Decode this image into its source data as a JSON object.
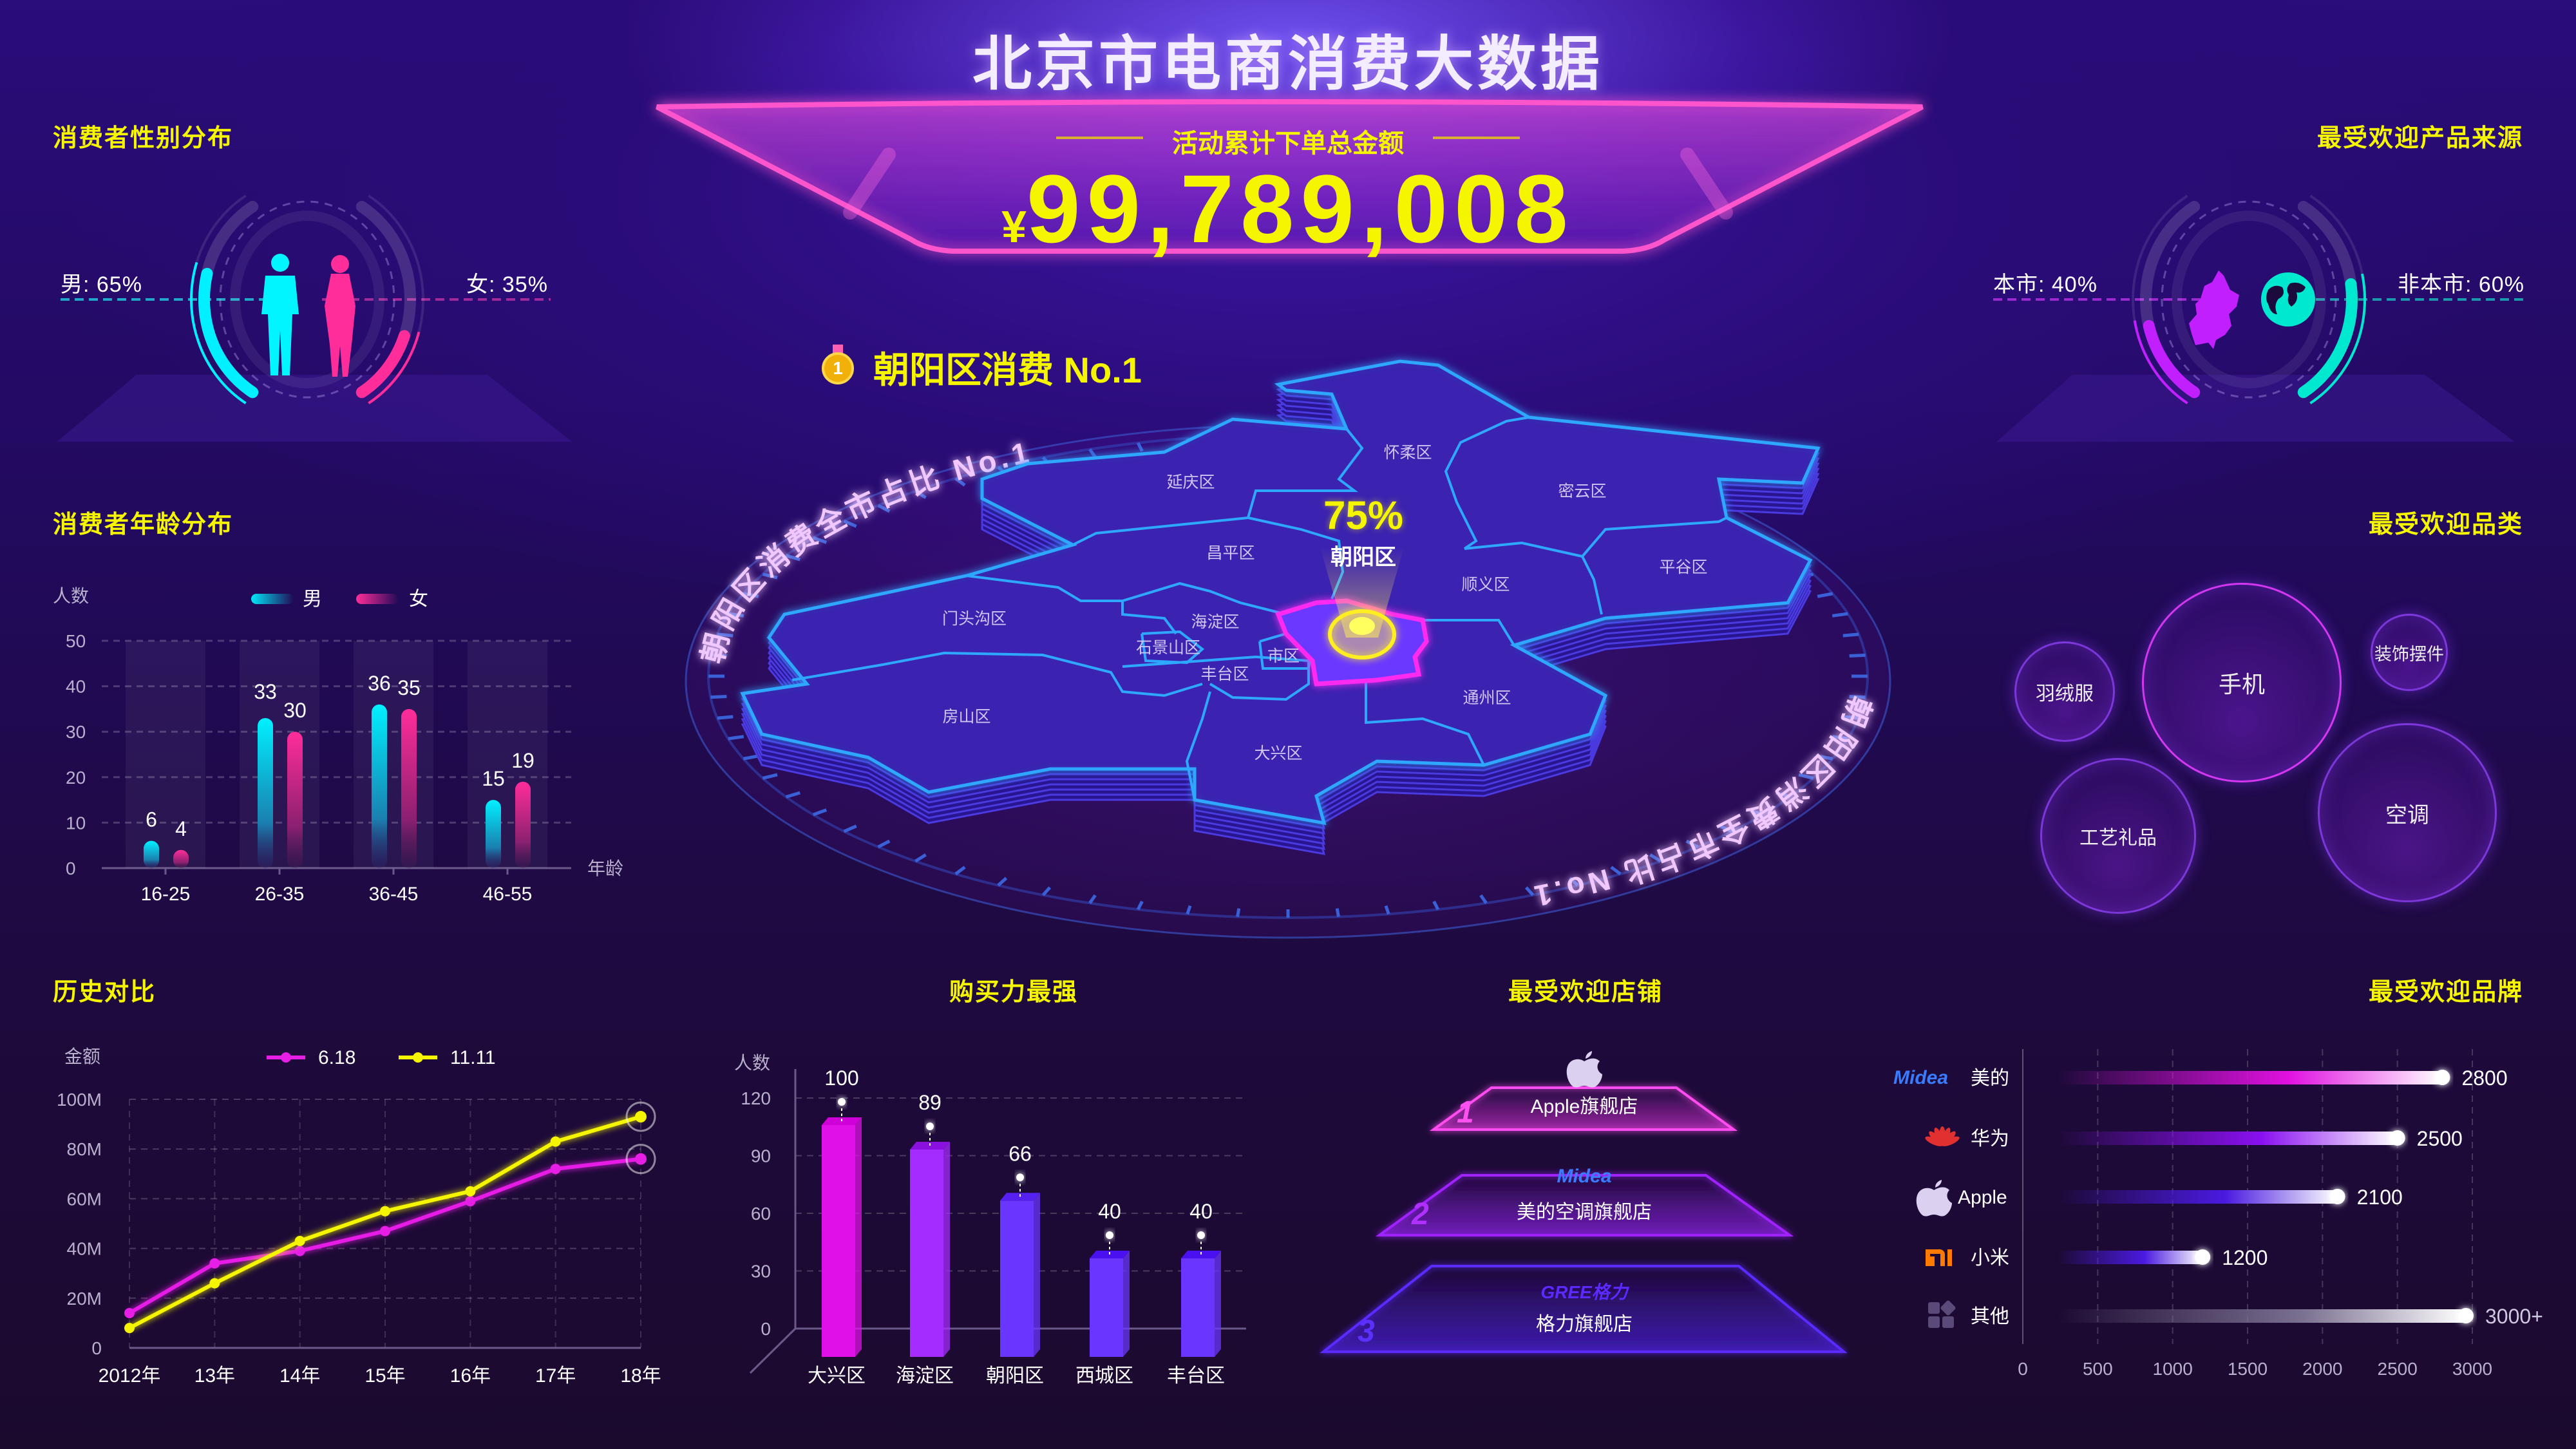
{
  "header": {
    "title": "北京市电商消费大数据",
    "subtitle": "活动累计下单总金额",
    "currency": "¥",
    "total": "99,789,008"
  },
  "colors": {
    "accent_yellow": "#f5f500",
    "male": "#00f0ff",
    "female": "#ff2d9a",
    "local": "#c21fff",
    "nonlocal": "#00e8d0",
    "map_edge": "#2ea8ff",
    "highlight": "#ff2bf0"
  },
  "gender": {
    "title": "消费者性别分布",
    "male_label": "男: 65%",
    "female_label": "女: 35%",
    "male_percent": 65,
    "female_percent": 35,
    "icons": [
      "male-silhouette-icon",
      "female-silhouette-icon"
    ]
  },
  "source": {
    "title": "最受欢迎产品来源",
    "local_label": "本市: 40%",
    "nonlocal_label": "非本市: 60%",
    "local_percent": 40,
    "nonlocal_percent": 60,
    "icons": [
      "beijing-map-icon",
      "globe-icon"
    ]
  },
  "map": {
    "headline": "朝阳区消费 No.1",
    "medal_number": "1",
    "ring_text": "朝阳区消费全市占比 No.1",
    "highlight_percent": "75%",
    "highlight_district": "朝阳区",
    "districts": [
      "怀柔区",
      "延庆区",
      "密云区",
      "昌平区",
      "顺义区",
      "平谷区",
      "门头沟区",
      "海淀区",
      "石景山区",
      "市区",
      "丰台区",
      "通州区",
      "房山区",
      "大兴区"
    ]
  },
  "categories": {
    "title": "最受欢迎品类",
    "items": [
      "手机",
      "羽绒服",
      "装饰摆件",
      "工艺礼品",
      "空调"
    ]
  },
  "stores": {
    "title": "最受欢迎店铺",
    "items": [
      {
        "rank": "1",
        "logo": "Apple",
        "name": "Apple旗舰店"
      },
      {
        "rank": "2",
        "logo": "Midea",
        "name": "美的空调旗舰店"
      },
      {
        "rank": "3",
        "logo": "GREE格力",
        "name": "格力旗舰店"
      }
    ]
  },
  "chart_data": [
    {
      "type": "bar",
      "title": "消费者年龄分布",
      "ylabel": "人数",
      "xlabel": "年龄",
      "categories": [
        "16-25",
        "26-35",
        "36-45",
        "46-55"
      ],
      "series": [
        {
          "name": "男",
          "values": [
            6,
            33,
            36,
            15
          ]
        },
        {
          "name": "女",
          "values": [
            4,
            30,
            35,
            19
          ]
        }
      ],
      "ylim": [
        0,
        50
      ],
      "yticks": [
        "0",
        "10",
        "20",
        "30",
        "40",
        "50"
      ],
      "grid": true,
      "legend": "top"
    },
    {
      "type": "line",
      "title": "历史对比",
      "ylabel": "金额",
      "categories": [
        "2012年",
        "13年",
        "14年",
        "15年",
        "16年",
        "17年",
        "18年"
      ],
      "series": [
        {
          "name": "6.18",
          "values": [
            14,
            34,
            39,
            47,
            59,
            72,
            76
          ]
        },
        {
          "name": "11.11",
          "values": [
            8,
            26,
            43,
            55,
            63,
            83,
            93
          ]
        }
      ],
      "unit": "M",
      "ylim": [
        0,
        100
      ],
      "yticks": [
        "0",
        "20M",
        "40M",
        "60M",
        "80M",
        "100M"
      ],
      "grid": true,
      "legend": "top"
    },
    {
      "type": "bar",
      "title": "购买力最强",
      "ylabel": "人数",
      "categories": [
        "大兴区",
        "海淀区",
        "朝阳区",
        "西城区",
        "丰台区"
      ],
      "values": [
        100,
        89,
        66,
        40,
        40
      ],
      "ylim": [
        0,
        120
      ],
      "yticks": [
        "0",
        "30",
        "60",
        "90",
        "120"
      ],
      "grid": true
    },
    {
      "type": "bar",
      "orientation": "horizontal",
      "title": "最受欢迎品牌",
      "categories": [
        "美的",
        "华为",
        "Apple",
        "小米",
        "其他"
      ],
      "brand_logos": [
        "Midea",
        "huawei-logo-icon",
        "apple-logo-icon",
        "mi-logo-icon",
        "other-grid-icon"
      ],
      "values": [
        2800,
        2500,
        2100,
        1200,
        3000
      ],
      "value_labels": [
        "2800",
        "2500",
        "2100",
        "1200",
        "3000+"
      ],
      "xlim": [
        0,
        3000
      ],
      "xticks": [
        "0",
        "500",
        "1000",
        "1500",
        "2000",
        "2500",
        "3000"
      ],
      "grid": true
    }
  ]
}
